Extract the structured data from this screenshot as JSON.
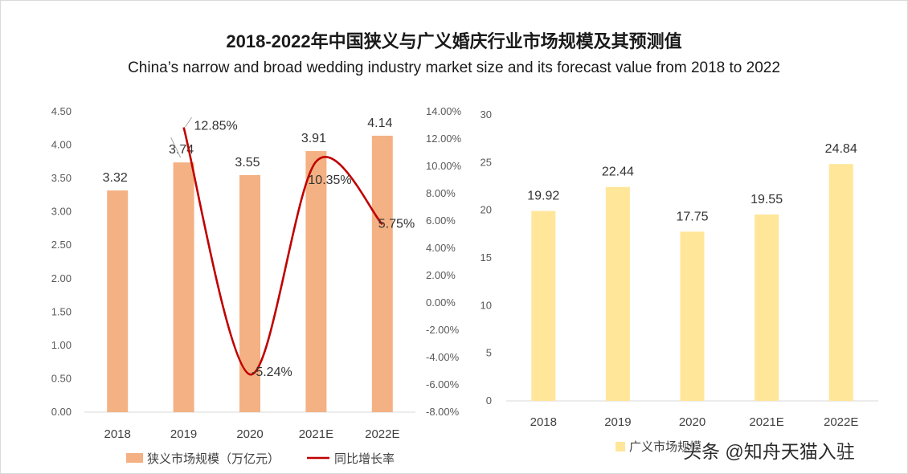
{
  "title": "2018-2022年中国狭义与广义婚庆行业市场规模及其预测值",
  "subtitle": "China’s narrow and broad wedding industry market size and its forecast value from 2018 to 2022",
  "watermark": "头条 @知舟天猫入驻",
  "colors": {
    "narrow_bar": "#f4b183",
    "growth_line": "#c00000",
    "broad_bar": "#ffe699",
    "axis": "#d9d9d9"
  },
  "chart_data": [
    {
      "type": "bar",
      "categories": [
        "2018",
        "2019",
        "2020",
        "2021E",
        "2022E"
      ],
      "series": [
        {
          "name": "狭义市场规模（万亿元）",
          "type": "bar",
          "axis": "left",
          "values": [
            3.32,
            3.74,
            3.55,
            3.91,
            4.14
          ],
          "labels": [
            "3.32",
            "3.74",
            "3.55",
            "3.91",
            "4.14"
          ]
        },
        {
          "name": "同比增长率",
          "type": "line",
          "axis": "right",
          "values": [
            null,
            12.85,
            -5.24,
            10.35,
            5.75
          ],
          "labels": [
            "",
            "12.85%",
            "-5.24%",
            "10.35%",
            "5.75%"
          ]
        }
      ],
      "left_axis": {
        "min": 0,
        "max": 4.5,
        "step": 0.5,
        "ticks": [
          "0.00",
          "0.50",
          "1.00",
          "1.50",
          "2.00",
          "2.50",
          "3.00",
          "3.50",
          "4.00",
          "4.50"
        ]
      },
      "right_axis": {
        "min": -8,
        "max": 14,
        "step": 2,
        "ticks": [
          "-8.00%",
          "-6.00%",
          "-4.00%",
          "-2.00%",
          "0.00%",
          "2.00%",
          "4.00%",
          "6.00%",
          "8.00%",
          "10.00%",
          "12.00%",
          "14.00%"
        ]
      },
      "legend": [
        {
          "label": "狭义市场规模（万亿元）",
          "kind": "bar"
        },
        {
          "label": "同比增长率",
          "kind": "line"
        }
      ],
      "legend_position": "bottom"
    },
    {
      "type": "bar",
      "categories": [
        "2018",
        "2019",
        "2020",
        "2021E",
        "2022E"
      ],
      "series": [
        {
          "name": "广义市场规模",
          "type": "bar",
          "values": [
            19.92,
            22.44,
            17.75,
            19.55,
            24.84
          ],
          "labels": [
            "19.92",
            "22.44",
            "17.75",
            "19.55",
            "24.84"
          ]
        }
      ],
      "y_axis": {
        "min": 0,
        "max": 30,
        "step": 5,
        "ticks": [
          "0",
          "5",
          "10",
          "15",
          "20",
          "25",
          "30"
        ]
      },
      "legend": [
        {
          "label": "广义市场规模",
          "kind": "bar"
        }
      ],
      "legend_position": "bottom"
    }
  ]
}
